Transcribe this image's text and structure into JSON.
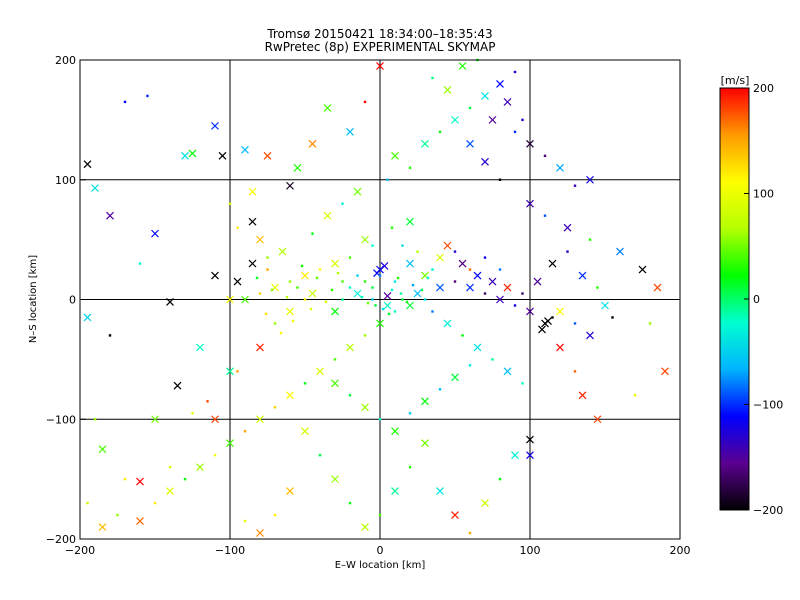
{
  "chart_data": {
    "type": "scatter",
    "title": "Tromsø 20150421 18:34:00–18:35:43",
    "subtitle": "RwPretec (8p) EXPERIMENTAL SKYMAP",
    "xlabel": "E–W location [km]",
    "ylabel": "N–S location [km]",
    "xlim": [
      -200,
      200
    ],
    "ylim": [
      -200,
      200
    ],
    "xticks": [
      "−200",
      "−100",
      "0",
      "100",
      "200"
    ],
    "yticks": [
      "−200",
      "−100",
      "0",
      "100",
      "200"
    ],
    "x_tick_values": [
      -200,
      -100,
      0,
      100,
      200
    ],
    "y_tick_values": [
      -200,
      -100,
      0,
      100,
      200
    ],
    "grid": true,
    "colorbar": {
      "label": "[m/s]",
      "range": [
        -200,
        200
      ],
      "tick_values": [
        -200,
        -100,
        0,
        100,
        200
      ],
      "tick_labels": [
        "−200",
        "−100",
        "0",
        "100",
        "200"
      ],
      "colors": [
        "#000000",
        "#5a0090",
        "#0000ff",
        "#00b4ff",
        "#00ffd0",
        "#00ff00",
        "#b4ff00",
        "#ffff00",
        "#ff9a00",
        "#ff0000"
      ]
    },
    "markers": {
      "small": "dot",
      "large": "cross"
    },
    "points": [
      [
        0,
        25,
        -115,
        1
      ],
      [
        -2,
        22,
        -110,
        1
      ],
      [
        3,
        28,
        -125,
        1
      ],
      [
        0,
        20,
        -80,
        0
      ],
      [
        5,
        3,
        -150,
        1
      ],
      [
        -5,
        45,
        -20,
        0
      ],
      [
        8,
        60,
        30,
        0
      ],
      [
        -10,
        50,
        60,
        1
      ],
      [
        15,
        45,
        -40,
        0
      ],
      [
        20,
        65,
        10,
        1
      ],
      [
        -20,
        35,
        40,
        0
      ],
      [
        -30,
        30,
        90,
        1
      ],
      [
        -40,
        25,
        110,
        0
      ],
      [
        -50,
        20,
        120,
        1
      ],
      [
        -60,
        15,
        60,
        0
      ],
      [
        -70,
        10,
        100,
        1
      ],
      [
        -80,
        5,
        130,
        0
      ],
      [
        -90,
        0,
        40,
        1
      ],
      [
        -95,
        15,
        -200,
        1
      ],
      [
        -85,
        30,
        -200,
        1
      ],
      [
        -75,
        25,
        150,
        0
      ],
      [
        -65,
        40,
        70,
        1
      ],
      [
        -45,
        55,
        20,
        0
      ],
      [
        -35,
        70,
        90,
        1
      ],
      [
        -25,
        80,
        -30,
        0
      ],
      [
        -15,
        90,
        50,
        1
      ],
      [
        5,
        100,
        -60,
        0
      ],
      [
        10,
        120,
        40,
        1
      ],
      [
        20,
        110,
        30,
        0
      ],
      [
        30,
        130,
        -10,
        1
      ],
      [
        40,
        140,
        20,
        0
      ],
      [
        50,
        150,
        -20,
        1
      ],
      [
        60,
        160,
        10,
        0
      ],
      [
        70,
        170,
        -40,
        1
      ],
      [
        80,
        180,
        -110,
        1
      ],
      [
        90,
        190,
        -120,
        0
      ],
      [
        55,
        195,
        30,
        1
      ],
      [
        65,
        200,
        25,
        0
      ],
      [
        45,
        175,
        60,
        1
      ],
      [
        35,
        185,
        -5,
        0
      ],
      [
        85,
        165,
        -140,
        1
      ],
      [
        95,
        150,
        -130,
        0
      ],
      [
        100,
        130,
        -180,
        1
      ],
      [
        110,
        120,
        -160,
        0
      ],
      [
        120,
        110,
        -70,
        1
      ],
      [
        130,
        95,
        -140,
        0
      ],
      [
        140,
        100,
        -120,
        1
      ],
      [
        75,
        150,
        -150,
        1
      ],
      [
        90,
        140,
        -100,
        0
      ],
      [
        60,
        130,
        -90,
        1
      ],
      [
        70,
        115,
        -130,
        1
      ],
      [
        80,
        100,
        -200,
        0
      ],
      [
        100,
        80,
        -140,
        1
      ],
      [
        110,
        70,
        -90,
        0
      ],
      [
        125,
        60,
        -140,
        1
      ],
      [
        140,
        50,
        30,
        0
      ],
      [
        160,
        40,
        -80,
        1
      ],
      [
        175,
        25,
        -200,
        1
      ],
      [
        185,
        10,
        180,
        1
      ],
      [
        180,
        -20,
        60,
        0
      ],
      [
        190,
        -60,
        180,
        1
      ],
      [
        170,
        -80,
        100,
        0
      ],
      [
        145,
        -100,
        180,
        1
      ],
      [
        135,
        -80,
        190,
        1
      ],
      [
        130,
        -60,
        170,
        0
      ],
      [
        120,
        -40,
        200,
        1
      ],
      [
        110,
        -20,
        -200,
        1
      ],
      [
        112,
        -18,
        -200,
        1
      ],
      [
        108,
        -25,
        -200,
        1
      ],
      [
        115,
        -15,
        -200,
        0
      ],
      [
        100,
        -10,
        -150,
        1
      ],
      [
        90,
        -5,
        -120,
        0
      ],
      [
        80,
        0,
        -140,
        1
      ],
      [
        70,
        5,
        -170,
        0
      ],
      [
        60,
        10,
        -100,
        1
      ],
      [
        50,
        15,
        -160,
        0
      ],
      [
        40,
        10,
        -90,
        1
      ],
      [
        30,
        0,
        -40,
        0
      ],
      [
        20,
        -5,
        10,
        1
      ],
      [
        10,
        -10,
        -20,
        0
      ],
      [
        0,
        -20,
        30,
        1
      ],
      [
        -10,
        -30,
        60,
        0
      ],
      [
        -20,
        -40,
        70,
        1
      ],
      [
        -30,
        -50,
        40,
        0
      ],
      [
        -40,
        -60,
        90,
        1
      ],
      [
        -50,
        -70,
        20,
        0
      ],
      [
        -60,
        -80,
        110,
        1
      ],
      [
        -70,
        -90,
        130,
        0
      ],
      [
        -80,
        -100,
        80,
        1
      ],
      [
        -90,
        -110,
        150,
        0
      ],
      [
        -100,
        -120,
        40,
        1
      ],
      [
        -110,
        -130,
        100,
        0
      ],
      [
        -120,
        -140,
        60,
        1
      ],
      [
        -130,
        -150,
        20,
        0
      ],
      [
        -140,
        -160,
        90,
        1
      ],
      [
        -150,
        -170,
        120,
        0
      ],
      [
        -160,
        -185,
        170,
        1
      ],
      [
        -175,
        -180,
        60,
        0
      ],
      [
        -185,
        -190,
        140,
        1
      ],
      [
        -195,
        -170,
        80,
        0
      ],
      [
        -160,
        -152,
        200,
        1
      ],
      [
        -140,
        -140,
        90,
        0
      ],
      [
        -110,
        -100,
        180,
        1
      ],
      [
        -95,
        -60,
        150,
        0
      ],
      [
        -80,
        -40,
        190,
        1
      ],
      [
        -70,
        -20,
        60,
        0
      ],
      [
        -60,
        -10,
        100,
        1
      ],
      [
        -50,
        0,
        120,
        0
      ],
      [
        -45,
        5,
        80,
        1
      ],
      [
        -55,
        10,
        40,
        0
      ],
      [
        -30,
        -10,
        20,
        1
      ],
      [
        -25,
        0,
        -10,
        0
      ],
      [
        -15,
        5,
        -30,
        1
      ],
      [
        -5,
        0,
        -50,
        0
      ],
      [
        5,
        -5,
        -20,
        1
      ],
      [
        15,
        0,
        10,
        0
      ],
      [
        25,
        5,
        -60,
        1
      ],
      [
        35,
        -10,
        -80,
        0
      ],
      [
        45,
        -20,
        -30,
        1
      ],
      [
        55,
        -30,
        20,
        0
      ],
      [
        65,
        -40,
        -40,
        1
      ],
      [
        75,
        -50,
        -10,
        0
      ],
      [
        85,
        -60,
        -60,
        1
      ],
      [
        95,
        -70,
        -20,
        0
      ],
      [
        30,
        -120,
        50,
        1
      ],
      [
        20,
        -140,
        30,
        0
      ],
      [
        10,
        -160,
        -10,
        1
      ],
      [
        0,
        -180,
        40,
        0
      ],
      [
        -10,
        -190,
        70,
        1
      ],
      [
        -20,
        -170,
        20,
        0
      ],
      [
        -30,
        -150,
        60,
        1
      ],
      [
        -40,
        -130,
        10,
        0
      ],
      [
        -50,
        -110,
        80,
        1
      ],
      [
        -60,
        -160,
        140,
        1
      ],
      [
        -70,
        -180,
        120,
        0
      ],
      [
        -80,
        -195,
        160,
        1
      ],
      [
        -90,
        -185,
        100,
        0
      ],
      [
        40,
        -160,
        -40,
        1
      ],
      [
        50,
        -180,
        190,
        1
      ],
      [
        60,
        -195,
        150,
        0
      ],
      [
        70,
        -170,
        80,
        1
      ],
      [
        80,
        -150,
        20,
        0
      ],
      [
        90,
        -130,
        -30,
        1
      ],
      [
        100,
        -117,
        -200,
        1
      ],
      [
        100,
        -130,
        -120,
        1
      ],
      [
        -180,
        70,
        -150,
        1
      ],
      [
        -195,
        113,
        -200,
        1
      ],
      [
        -190,
        93,
        -40,
        1
      ],
      [
        -155,
        170,
        -100,
        0
      ],
      [
        -170,
        165,
        -110,
        0
      ],
      [
        -130,
        120,
        -40,
        1
      ],
      [
        -125,
        122,
        20,
        1
      ],
      [
        -110,
        145,
        -100,
        1
      ],
      [
        -105,
        120,
        -200,
        1
      ],
      [
        -100,
        80,
        80,
        0
      ],
      [
        -90,
        125,
        -60,
        1
      ],
      [
        -85,
        90,
        110,
        1
      ],
      [
        -75,
        120,
        180,
        1
      ],
      [
        -60,
        95,
        -190,
        1
      ],
      [
        -55,
        110,
        30,
        1
      ],
      [
        -45,
        130,
        160,
        1
      ],
      [
        -35,
        160,
        40,
        1
      ],
      [
        -20,
        140,
        -60,
        1
      ],
      [
        -10,
        165,
        200,
        0
      ],
      [
        0,
        195,
        200,
        1
      ],
      [
        -150,
        55,
        -110,
        1
      ],
      [
        -160,
        30,
        -20,
        0
      ],
      [
        -140,
        -2,
        -200,
        1
      ],
      [
        -180,
        -30,
        -200,
        0
      ],
      [
        -195,
        -15,
        -50,
        1
      ],
      [
        -190,
        -100,
        60,
        0
      ],
      [
        -185,
        -125,
        40,
        1
      ],
      [
        -170,
        -150,
        120,
        0
      ],
      [
        -150,
        -100,
        50,
        1
      ],
      [
        -135,
        -72,
        -200,
        1
      ],
      [
        -125,
        -95,
        100,
        0
      ],
      [
        -120,
        -40,
        -20,
        1
      ],
      [
        -115,
        -85,
        180,
        0
      ],
      [
        -100,
        -60,
        -10,
        1
      ],
      [
        -100,
        0,
        110,
        1
      ],
      [
        -110,
        20,
        -200,
        1
      ],
      [
        -95,
        60,
        120,
        0
      ],
      [
        -85,
        65,
        -200,
        1
      ],
      [
        -80,
        50,
        140,
        1
      ],
      [
        -75,
        35,
        60,
        0
      ],
      [
        20,
        30,
        -60,
        1
      ],
      [
        25,
        40,
        70,
        0
      ],
      [
        30,
        20,
        50,
        1
      ],
      [
        35,
        25,
        -30,
        0
      ],
      [
        40,
        35,
        90,
        1
      ],
      [
        45,
        45,
        180,
        1
      ],
      [
        50,
        40,
        -130,
        0
      ],
      [
        55,
        30,
        -160,
        1
      ],
      [
        60,
        25,
        170,
        0
      ],
      [
        65,
        20,
        -110,
        1
      ],
      [
        70,
        35,
        -120,
        0
      ],
      [
        75,
        15,
        -140,
        1
      ],
      [
        80,
        25,
        -80,
        0
      ],
      [
        85,
        10,
        190,
        1
      ],
      [
        95,
        5,
        -170,
        0
      ],
      [
        105,
        15,
        -150,
        1
      ],
      [
        115,
        30,
        -200,
        1
      ],
      [
        125,
        40,
        -130,
        0
      ],
      [
        135,
        20,
        -100,
        1
      ],
      [
        145,
        10,
        30,
        0
      ],
      [
        150,
        -5,
        -40,
        1
      ],
      [
        155,
        -15,
        -200,
        0
      ],
      [
        140,
        -30,
        -130,
        1
      ],
      [
        130,
        -20,
        -90,
        0
      ],
      [
        120,
        -10,
        110,
        1
      ],
      [
        -5,
        10,
        10,
        0
      ],
      [
        -10,
        15,
        30,
        0
      ],
      [
        -15,
        20,
        -50,
        0
      ],
      [
        -20,
        10,
        -20,
        0
      ],
      [
        -25,
        15,
        40,
        0
      ],
      [
        10,
        15,
        -40,
        0
      ],
      [
        12,
        18,
        30,
        0
      ],
      [
        8,
        8,
        -30,
        0
      ],
      [
        14,
        5,
        -10,
        0
      ],
      [
        18,
        -2,
        20,
        0
      ],
      [
        -3,
        -5,
        10,
        0
      ],
      [
        2,
        -8,
        -40,
        0
      ],
      [
        6,
        -12,
        15,
        0
      ],
      [
        -8,
        -3,
        50,
        0
      ],
      [
        -12,
        2,
        -15,
        0
      ],
      [
        22,
        12,
        -70,
        0
      ],
      [
        28,
        8,
        5,
        0
      ],
      [
        32,
        18,
        -25,
        0
      ],
      [
        -28,
        22,
        65,
        0
      ],
      [
        -32,
        8,
        35,
        0
      ],
      [
        -36,
        -2,
        85,
        0
      ],
      [
        -42,
        18,
        45,
        0
      ],
      [
        -46,
        -8,
        95,
        0
      ],
      [
        -52,
        28,
        25,
        0
      ],
      [
        -58,
        -18,
        105,
        0
      ],
      [
        -62,
        2,
        75,
        0
      ],
      [
        -66,
        -28,
        115,
        0
      ],
      [
        -72,
        8,
        55,
        0
      ],
      [
        -76,
        -12,
        125,
        0
      ],
      [
        -82,
        18,
        15,
        0
      ],
      [
        -30,
        -70,
        40,
        1
      ],
      [
        -20,
        -80,
        10,
        0
      ],
      [
        -10,
        -90,
        60,
        1
      ],
      [
        0,
        -100,
        -20,
        0
      ],
      [
        10,
        -110,
        30,
        1
      ],
      [
        20,
        -95,
        -50,
        0
      ],
      [
        30,
        -85,
        20,
        1
      ],
      [
        40,
        -75,
        -60,
        0
      ],
      [
        50,
        -65,
        10,
        1
      ],
      [
        60,
        -55,
        -30,
        0
      ]
    ]
  }
}
